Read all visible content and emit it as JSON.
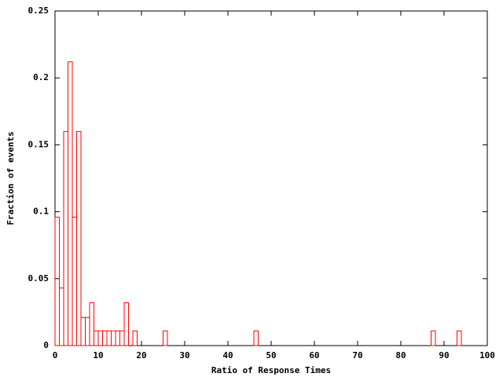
{
  "chart_data": {
    "type": "histogram",
    "xlabel": "Ratio of Response Times",
    "ylabel": "Fraction of events",
    "bins": [
      0,
      1,
      2,
      3,
      4,
      5,
      6,
      7,
      8,
      9,
      10,
      11,
      12,
      13,
      14,
      15,
      16,
      17,
      18,
      19,
      20,
      21,
      22,
      23,
      24,
      25,
      26,
      27,
      28,
      29,
      30,
      31,
      32,
      33,
      34,
      35,
      36,
      37,
      38,
      39,
      40,
      41,
      42,
      43,
      44,
      45,
      46,
      47,
      48,
      49,
      50,
      51,
      52,
      53,
      54,
      55,
      56,
      57,
      58,
      59,
      60,
      61,
      62,
      63,
      64,
      65,
      66,
      67,
      68,
      69,
      70,
      71,
      72,
      73,
      74,
      75,
      76,
      77,
      78,
      79,
      80,
      81,
      82,
      83,
      84,
      85,
      86,
      87,
      88,
      89,
      90,
      91,
      92,
      93,
      94
    ],
    "values": [
      0.096,
      0.043,
      0.16,
      0.212,
      0.096,
      0.16,
      0.021,
      0.021,
      0.032,
      0.011,
      0.011,
      0.011,
      0.011,
      0.011,
      0.011,
      0.011,
      0.032,
      0,
      0.011,
      0,
      0,
      0,
      0,
      0,
      0,
      0.011,
      0,
      0,
      0,
      0,
      0,
      0,
      0,
      0,
      0,
      0,
      0,
      0,
      0,
      0,
      0,
      0,
      0,
      0,
      0,
      0,
      0.011,
      0,
      0,
      0,
      0,
      0,
      0,
      0,
      0,
      0,
      0,
      0,
      0,
      0,
      0,
      0,
      0,
      0,
      0,
      0,
      0,
      0,
      0,
      0,
      0,
      0,
      0,
      0,
      0,
      0,
      0,
      0,
      0,
      0,
      0,
      0,
      0,
      0,
      0,
      0,
      0,
      0.011,
      0,
      0,
      0,
      0,
      0,
      0.011
    ],
    "color": "#ff0000",
    "xlim": [
      0,
      100
    ],
    "xticks": [
      0,
      10,
      20,
      30,
      40,
      50,
      60,
      70,
      80,
      90,
      100
    ],
    "ylim": [
      0,
      0.25
    ],
    "yticks": [
      0,
      0.05,
      0.1,
      0.15,
      0.2,
      0.25
    ]
  }
}
